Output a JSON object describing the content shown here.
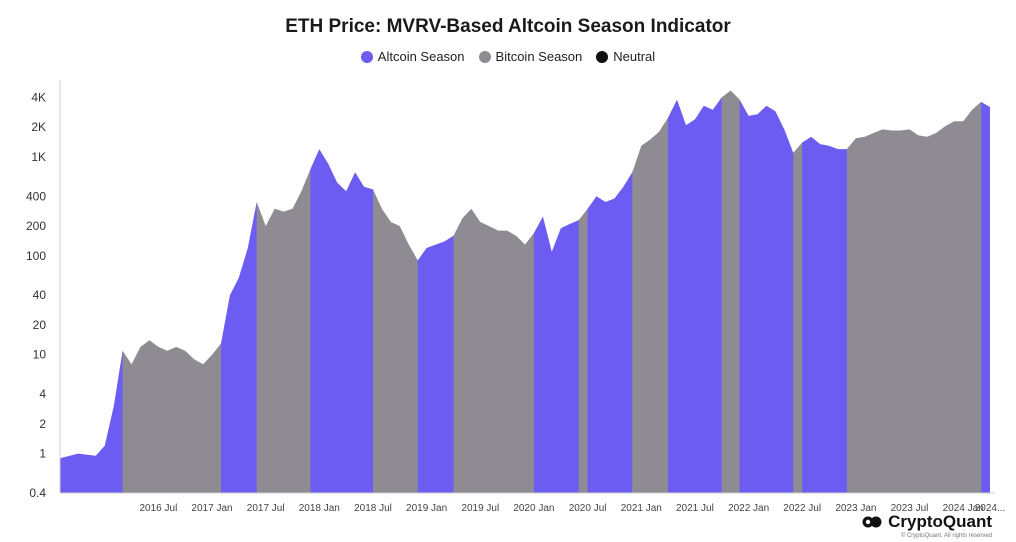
{
  "chart_data": {
    "type": "area",
    "title": "ETH Price: MVRV-Based Altcoin Season Indicator",
    "xlabel": "",
    "ylabel": "",
    "y_scale": "log",
    "ylim": [
      0.4,
      6000
    ],
    "x_range": [
      "2015-08",
      "2024-04"
    ],
    "y_ticks": [
      {
        "value": 4000,
        "label": "4K"
      },
      {
        "value": 2000,
        "label": "2K"
      },
      {
        "value": 1000,
        "label": "1K"
      },
      {
        "value": 400,
        "label": "400"
      },
      {
        "value": 200,
        "label": "200"
      },
      {
        "value": 100,
        "label": "100"
      },
      {
        "value": 40,
        "label": "40"
      },
      {
        "value": 20,
        "label": "20"
      },
      {
        "value": 10,
        "label": "10"
      },
      {
        "value": 4,
        "label": "4"
      },
      {
        "value": 2,
        "label": "2"
      },
      {
        "value": 1,
        "label": "1"
      },
      {
        "value": 0.4,
        "label": "0.4"
      }
    ],
    "x_ticks": [
      {
        "date": "2016-07",
        "label": "2016 Jul"
      },
      {
        "date": "2017-01",
        "label": "2017 Jan"
      },
      {
        "date": "2017-07",
        "label": "2017 Jul"
      },
      {
        "date": "2018-01",
        "label": "2018 Jan"
      },
      {
        "date": "2018-07",
        "label": "2018 Jul"
      },
      {
        "date": "2019-01",
        "label": "2019 Jan"
      },
      {
        "date": "2019-07",
        "label": "2019 Jul"
      },
      {
        "date": "2020-01",
        "label": "2020 Jan"
      },
      {
        "date": "2020-07",
        "label": "2020 Jul"
      },
      {
        "date": "2021-01",
        "label": "2021 Jan"
      },
      {
        "date": "2021-07",
        "label": "2021 Jul"
      },
      {
        "date": "2022-01",
        "label": "2022 Jan"
      },
      {
        "date": "2022-07",
        "label": "2022 Jul"
      },
      {
        "date": "2023-01",
        "label": "2023 Jan"
      },
      {
        "date": "2023-07",
        "label": "2023 Jul"
      },
      {
        "date": "2024-01",
        "label": "2024 Jan"
      },
      {
        "date": "2024-04",
        "label": "2024..."
      }
    ],
    "legend": {
      "position": "top-center",
      "items": [
        {
          "name": "Altcoin Season",
          "color": "#6c5cf2"
        },
        {
          "name": "Bitcoin Season",
          "color": "#8e8c92"
        },
        {
          "name": "Neutral",
          "color": "#111111"
        }
      ]
    },
    "grid": false,
    "series": [
      {
        "name": "ETH Price",
        "points": [
          {
            "date": "2015-08",
            "value": 0.9
          },
          {
            "date": "2015-10",
            "value": 1
          },
          {
            "date": "2015-12",
            "value": 0.95
          },
          {
            "date": "2016-01",
            "value": 1.2
          },
          {
            "date": "2016-02",
            "value": 3
          },
          {
            "date": "2016-03",
            "value": 11
          },
          {
            "date": "2016-04",
            "value": 8
          },
          {
            "date": "2016-05",
            "value": 12
          },
          {
            "date": "2016-06",
            "value": 14
          },
          {
            "date": "2016-07",
            "value": 12
          },
          {
            "date": "2016-08",
            "value": 11
          },
          {
            "date": "2016-09",
            "value": 12
          },
          {
            "date": "2016-10",
            "value": 11
          },
          {
            "date": "2016-11",
            "value": 9
          },
          {
            "date": "2016-12",
            "value": 8
          },
          {
            "date": "2017-01",
            "value": 10
          },
          {
            "date": "2017-02",
            "value": 13
          },
          {
            "date": "2017-03",
            "value": 40
          },
          {
            "date": "2017-04",
            "value": 60
          },
          {
            "date": "2017-05",
            "value": 120
          },
          {
            "date": "2017-06",
            "value": 350
          },
          {
            "date": "2017-07",
            "value": 200
          },
          {
            "date": "2017-08",
            "value": 300
          },
          {
            "date": "2017-09",
            "value": 280
          },
          {
            "date": "2017-10",
            "value": 300
          },
          {
            "date": "2017-11",
            "value": 450
          },
          {
            "date": "2017-12",
            "value": 750
          },
          {
            "date": "2018-01",
            "value": 1200
          },
          {
            "date": "2018-02",
            "value": 850
          },
          {
            "date": "2018-03",
            "value": 550
          },
          {
            "date": "2018-04",
            "value": 450
          },
          {
            "date": "2018-05",
            "value": 700
          },
          {
            "date": "2018-06",
            "value": 500
          },
          {
            "date": "2018-07",
            "value": 470
          },
          {
            "date": "2018-08",
            "value": 300
          },
          {
            "date": "2018-09",
            "value": 220
          },
          {
            "date": "2018-10",
            "value": 200
          },
          {
            "date": "2018-11",
            "value": 130
          },
          {
            "date": "2018-12",
            "value": 90
          },
          {
            "date": "2019-01",
            "value": 120
          },
          {
            "date": "2019-02",
            "value": 130
          },
          {
            "date": "2019-03",
            "value": 140
          },
          {
            "date": "2019-04",
            "value": 160
          },
          {
            "date": "2019-05",
            "value": 240
          },
          {
            "date": "2019-06",
            "value": 300
          },
          {
            "date": "2019-07",
            "value": 220
          },
          {
            "date": "2019-08",
            "value": 200
          },
          {
            "date": "2019-09",
            "value": 180
          },
          {
            "date": "2019-10",
            "value": 180
          },
          {
            "date": "2019-11",
            "value": 160
          },
          {
            "date": "2019-12",
            "value": 130
          },
          {
            "date": "2020-01",
            "value": 170
          },
          {
            "date": "2020-02",
            "value": 250
          },
          {
            "date": "2020-03",
            "value": 110
          },
          {
            "date": "2020-04",
            "value": 190
          },
          {
            "date": "2020-05",
            "value": 210
          },
          {
            "date": "2020-06",
            "value": 230
          },
          {
            "date": "2020-07",
            "value": 300
          },
          {
            "date": "2020-08",
            "value": 400
          },
          {
            "date": "2020-09",
            "value": 350
          },
          {
            "date": "2020-10",
            "value": 380
          },
          {
            "date": "2020-11",
            "value": 500
          },
          {
            "date": "2020-12",
            "value": 700
          },
          {
            "date": "2021-01",
            "value": 1300
          },
          {
            "date": "2021-02",
            "value": 1500
          },
          {
            "date": "2021-03",
            "value": 1800
          },
          {
            "date": "2021-04",
            "value": 2500
          },
          {
            "date": "2021-05",
            "value": 3800
          },
          {
            "date": "2021-06",
            "value": 2100
          },
          {
            "date": "2021-07",
            "value": 2400
          },
          {
            "date": "2021-08",
            "value": 3300
          },
          {
            "date": "2021-09",
            "value": 3000
          },
          {
            "date": "2021-10",
            "value": 4000
          },
          {
            "date": "2021-11",
            "value": 4700
          },
          {
            "date": "2021-12",
            "value": 3800
          },
          {
            "date": "2022-01",
            "value": 2600
          },
          {
            "date": "2022-02",
            "value": 2700
          },
          {
            "date": "2022-03",
            "value": 3300
          },
          {
            "date": "2022-04",
            "value": 2900
          },
          {
            "date": "2022-05",
            "value": 1900
          },
          {
            "date": "2022-06",
            "value": 1100
          },
          {
            "date": "2022-07",
            "value": 1400
          },
          {
            "date": "2022-08",
            "value": 1600
          },
          {
            "date": "2022-09",
            "value": 1350
          },
          {
            "date": "2022-10",
            "value": 1300
          },
          {
            "date": "2022-11",
            "value": 1200
          },
          {
            "date": "2022-12",
            "value": 1200
          },
          {
            "date": "2023-01",
            "value": 1550
          },
          {
            "date": "2023-02",
            "value": 1600
          },
          {
            "date": "2023-03",
            "value": 1750
          },
          {
            "date": "2023-04",
            "value": 1900
          },
          {
            "date": "2023-05",
            "value": 1850
          },
          {
            "date": "2023-06",
            "value": 1850
          },
          {
            "date": "2023-07",
            "value": 1900
          },
          {
            "date": "2023-08",
            "value": 1650
          },
          {
            "date": "2023-09",
            "value": 1600
          },
          {
            "date": "2023-10",
            "value": 1750
          },
          {
            "date": "2023-11",
            "value": 2050
          },
          {
            "date": "2023-12",
            "value": 2300
          },
          {
            "date": "2024-01",
            "value": 2300
          },
          {
            "date": "2024-02",
            "value": 3000
          },
          {
            "date": "2024-03",
            "value": 3600
          },
          {
            "date": "2024-04",
            "value": 3200
          }
        ]
      }
    ],
    "regimes": [
      {
        "from": "2015-08",
        "to": "2016-03",
        "name": "Altcoin Season"
      },
      {
        "from": "2016-03",
        "to": "2017-02",
        "name": "Bitcoin Season"
      },
      {
        "from": "2017-02",
        "to": "2017-06",
        "name": "Altcoin Season"
      },
      {
        "from": "2017-06",
        "to": "2017-12",
        "name": "Bitcoin Season"
      },
      {
        "from": "2017-12",
        "to": "2018-07",
        "name": "Altcoin Season"
      },
      {
        "from": "2018-07",
        "to": "2018-12",
        "name": "Bitcoin Season"
      },
      {
        "from": "2018-12",
        "to": "2019-04",
        "name": "Altcoin Season"
      },
      {
        "from": "2019-04",
        "to": "2020-01",
        "name": "Bitcoin Season"
      },
      {
        "from": "2020-01",
        "to": "2020-06",
        "name": "Altcoin Season"
      },
      {
        "from": "2020-06",
        "to": "2020-07",
        "name": "Bitcoin Season"
      },
      {
        "from": "2020-07",
        "to": "2020-12",
        "name": "Altcoin Season"
      },
      {
        "from": "2020-12",
        "to": "2021-04",
        "name": "Bitcoin Season"
      },
      {
        "from": "2021-04",
        "to": "2021-10",
        "name": "Altcoin Season"
      },
      {
        "from": "2021-10",
        "to": "2021-12",
        "name": "Bitcoin Season"
      },
      {
        "from": "2021-12",
        "to": "2022-06",
        "name": "Altcoin Season"
      },
      {
        "from": "2022-06",
        "to": "2022-07",
        "name": "Bitcoin Season"
      },
      {
        "from": "2022-07",
        "to": "2022-12",
        "name": "Altcoin Season"
      },
      {
        "from": "2022-12",
        "to": "2024-03",
        "name": "Bitcoin Season"
      },
      {
        "from": "2024-03",
        "to": "2024-04",
        "name": "Altcoin Season"
      }
    ]
  },
  "branding": {
    "name": "CryptoQuant",
    "copyright": "© CryptoQuant. All rights reserved"
  }
}
